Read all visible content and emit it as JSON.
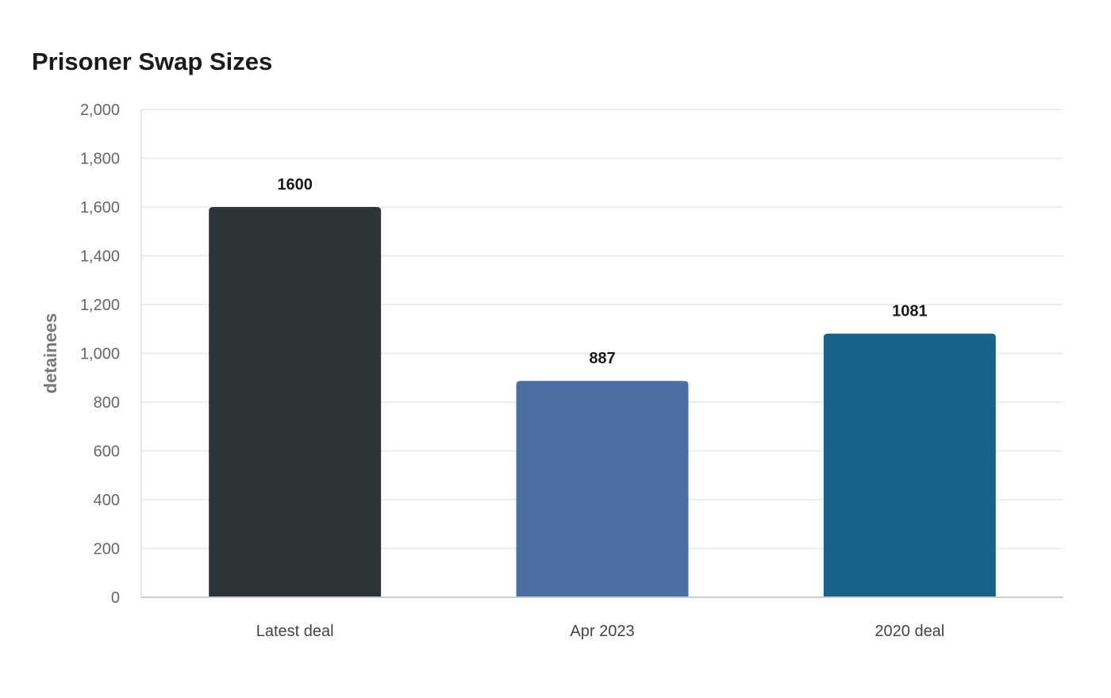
{
  "chart_data": {
    "type": "bar",
    "title": "Prisoner Swap Sizes",
    "xlabel": "",
    "ylabel": "detainees",
    "categories": [
      "Latest deal",
      "Apr 2023",
      "2020 deal"
    ],
    "values": [
      1600,
      887,
      1081
    ],
    "colors": [
      "#2e3538",
      "#4b6fa3",
      "#176289"
    ],
    "ylim": [
      0,
      2000
    ],
    "yticks": [
      0,
      200,
      400,
      600,
      800,
      1000,
      1200,
      1400,
      1600,
      1800,
      2000
    ],
    "ytick_labels": [
      "0",
      "200",
      "400",
      "600",
      "800",
      "1,000",
      "1,200",
      "1,400",
      "1,600",
      "1,800",
      "2,000"
    ],
    "grid": true,
    "data_labels": true
  }
}
